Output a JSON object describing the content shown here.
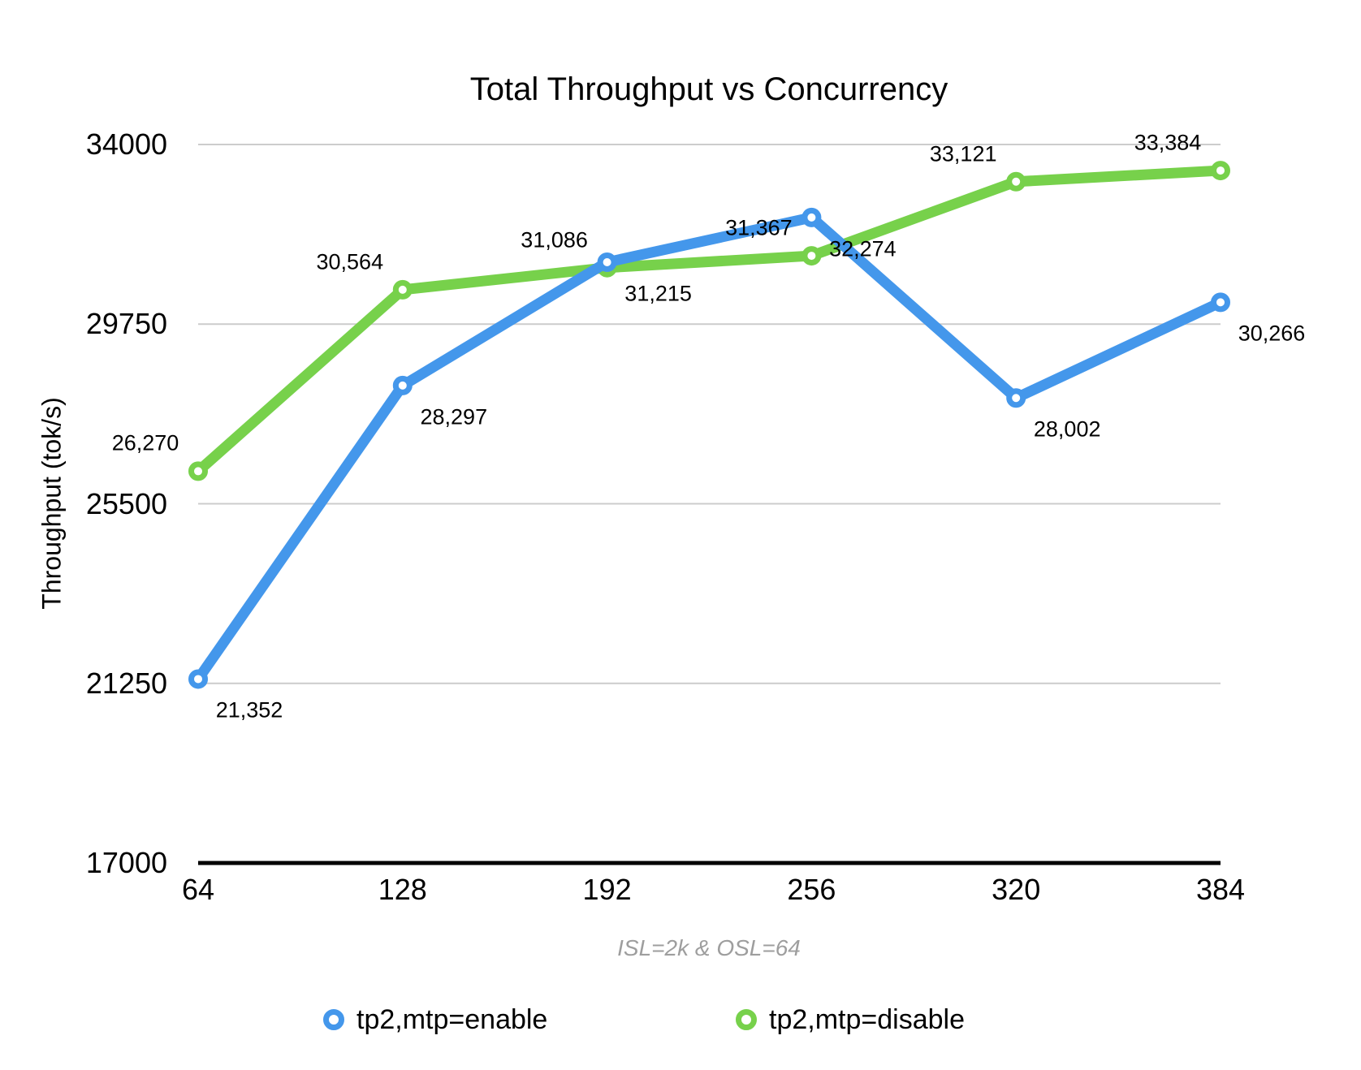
{
  "chart_data": {
    "type": "line",
    "title": "Total Throughput vs Concurrency",
    "ylabel": "Throughput (tok/s)",
    "xlabel": "ISL=2k & OSL=64",
    "x": [
      64,
      128,
      192,
      256,
      320,
      384
    ],
    "xtick_labels": [
      "64",
      "128",
      "192",
      "256",
      "320",
      "384"
    ],
    "yticks": [
      17000,
      21250,
      25500,
      29750,
      34000
    ],
    "ytick_labels": [
      "17000",
      "21250",
      "25500",
      "29750",
      "34000"
    ],
    "xlim": [
      64,
      384
    ],
    "ylim": [
      17000,
      34000
    ],
    "grid": true,
    "legend_position": "bottom",
    "series": [
      {
        "name": "tp2,mtp=enable",
        "color": "#4497EB",
        "values": [
          21352,
          28297,
          31215,
          32274,
          28002,
          30266
        ],
        "labels": [
          "21,352",
          "28,297",
          "31,215",
          "32,274",
          "28,002",
          "30,266"
        ],
        "label_offset": {
          "dx": 63,
          "dy": 39
        }
      },
      {
        "name": "tp2,mtp=disable",
        "color": "#77D14B",
        "values": [
          26270,
          30564,
          31086,
          31367,
          33121,
          33384
        ],
        "labels": [
          "26,270",
          "30,564",
          "31,086",
          "31,367",
          "33,121",
          "33,384"
        ],
        "label_offset": {
          "dx": -65,
          "dy": -34
        }
      }
    ],
    "colors": {
      "grid": "#cccccc",
      "axis": "#000000",
      "label": "#000000",
      "note_gray": "#9e9e9e"
    }
  }
}
